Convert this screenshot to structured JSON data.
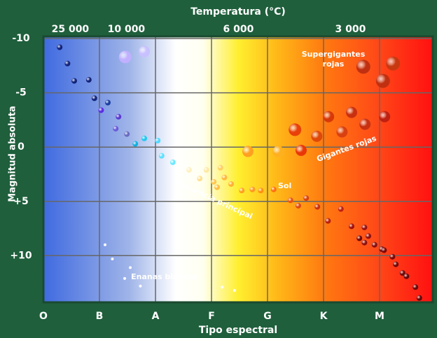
{
  "chart_data": {
    "type": "scatter",
    "title": "Temperatura (°C)",
    "x_label": "Tipo espectral",
    "y_label": "Magnitud absoluta",
    "xlim": [
      0,
      6.95
    ],
    "xticks": [
      {
        "value": 0,
        "label": "O"
      },
      {
        "value": 1,
        "label": "B"
      },
      {
        "value": 2,
        "label": "A"
      },
      {
        "value": 3,
        "label": "F"
      },
      {
        "value": 4,
        "label": "G"
      },
      {
        "value": 5,
        "label": "K"
      },
      {
        "value": 6,
        "label": "M"
      }
    ],
    "x2ticks": [
      {
        "value": 0.48,
        "label": "25 000"
      },
      {
        "value": 1.48,
        "label": "10 000"
      },
      {
        "value": 3.48,
        "label": "6 000"
      },
      {
        "value": 5.48,
        "label": "3 000"
      }
    ],
    "ylim": [
      -10.2,
      14.3
    ],
    "y_inverted": true,
    "yticks": [
      -10,
      -5,
      0,
      {
        "value": 5,
        "label": "+5"
      },
      {
        "value": 10,
        "label": "+10"
      }
    ],
    "grid": true,
    "x": [
      0.29,
      0.43,
      0.55,
      0.81,
      0.91,
      1.15,
      1.03,
      1.34,
      1.29,
      1.49,
      1.64,
      1.8,
      2.04,
      2.11,
      2.31,
      1.46,
      1.8,
      2.6,
      2.91,
      3.16,
      2.79,
      3.04,
      3.23,
      3.1,
      3.35,
      3.54,
      3.73,
      3.88,
      4.11,
      4.41,
      4.55,
      4.69,
      4.89,
      5.08,
      5.31,
      5.5,
      5.73,
      5.8,
      5.73,
      5.91,
      6.04,
      6.08,
      6.23,
      6.29,
      6.41,
      6.48,
      6.64,
      6.71,
      5.64,
      3.65,
      4.19,
      4.49,
      4.6,
      4.88,
      5.09,
      5.33,
      5.5,
      5.74,
      6.09,
      5.71,
      6.06,
      6.24,
      1.1,
      1.23,
      1.45,
      1.55,
      1.73,
      3.19,
      3.41
    ],
    "y": [
      -9.2,
      -7.7,
      -6.1,
      -6.2,
      -4.5,
      -4.1,
      -3.4,
      -2.8,
      -1.7,
      -1.2,
      -0.3,
      -0.8,
      -0.6,
      0.8,
      1.4,
      -8.3,
      -8.8,
      2.1,
      2.1,
      1.9,
      2.9,
      3.2,
      2.8,
      3.7,
      3.4,
      4.0,
      3.9,
      4.0,
      3.9,
      4.9,
      5.4,
      4.7,
      5.5,
      6.8,
      5.7,
      7.3,
      7.4,
      8.2,
      8.8,
      9.0,
      9.4,
      9.5,
      10.1,
      10.8,
      11.6,
      11.9,
      12.9,
      13.9,
      8.4,
      0.4,
      0.4,
      -1.6,
      0.3,
      -1.0,
      -2.8,
      -1.4,
      -3.2,
      -2.1,
      -2.8,
      -7.4,
      -6.1,
      -7.7,
      9.0,
      10.3,
      12.1,
      11.1,
      12.8,
      12.9,
      13.2
    ],
    "sizes": [
      4,
      4,
      4,
      4,
      4,
      4,
      4,
      4,
      4,
      4,
      4,
      4,
      4,
      4,
      4,
      9,
      8,
      4,
      4,
      4,
      4,
      4,
      4,
      4,
      4,
      4,
      4,
      4,
      4,
      4,
      4,
      4,
      4,
      4,
      4,
      4,
      4,
      4,
      4,
      4,
      4,
      4,
      4,
      4,
      4,
      4,
      4,
      4,
      4,
      8,
      8,
      9,
      8,
      8,
      8,
      8,
      8,
      8,
      8,
      10,
      10,
      10,
      2,
      2,
      2,
      2,
      2,
      2,
      2
    ],
    "colors": [
      "#12237a",
      "#12237a",
      "#12237a",
      "#12237a",
      "#12237a",
      "#1a3da0",
      "#5a2ce0",
      "#5a3ad0",
      "#6a5ad8",
      "#6a6ac0",
      "#10b0e0",
      "#20c8f0",
      "#50d8ff",
      "#60e0ff",
      "#70e8ff",
      "#c0b0ff",
      "#c8c0ff",
      "#fff0c0",
      "#ffe8a0",
      "#ffd060",
      "#ffe090",
      "#ffc850",
      "#ffb840",
      "#ffc040",
      "#ffb030",
      "#ffa020",
      "#ff9820",
      "#ff9010",
      "#ff7010",
      "#e85010",
      "#e04810",
      "#d84010",
      "#c83010",
      "#b82010",
      "#c02010",
      "#a01010",
      "#981010",
      "#901010",
      "#901010",
      "#881010",
      "#801010",
      "#7a0808",
      "#780808",
      "#700808",
      "#700808",
      "#680808",
      "#680808",
      "#600808",
      "#700808",
      "#ffa020",
      "#ffb020",
      "#e84008",
      "#e83808",
      "#e04808",
      "#d83808",
      "#d84010",
      "#c83010",
      "#c83010",
      "#c02010",
      "#c03010",
      "#c03010",
      "#c83810",
      "#ffffff",
      "#ffffff",
      "#ffffff",
      "#ffffff",
      "#ffffff",
      "#ffffff",
      "#ffffff"
    ],
    "annotations": [
      "Supergigantes rojas",
      "Gigantes rojas",
      "Sol",
      "Secuencia principal",
      "Enanas blancas"
    ]
  }
}
